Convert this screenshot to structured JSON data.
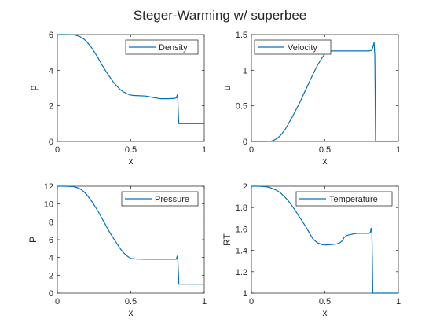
{
  "figure": {
    "title": "Steger-Warming w/ superbee"
  },
  "chart_data": [
    {
      "type": "line",
      "xlabel": "x",
      "ylabel": "ρ",
      "xlim": [
        0,
        1
      ],
      "ylim": [
        0,
        6
      ],
      "xticks": [
        "0",
        "0.5",
        "1"
      ],
      "yticks": [
        "0",
        "2",
        "4",
        "6"
      ],
      "legend": {
        "placement": "top-right",
        "entries": [
          "Density"
        ]
      },
      "color": "#0072bd",
      "series": [
        {
          "name": "Density",
          "x": [
            0,
            0.05,
            0.1,
            0.12,
            0.15,
            0.18,
            0.2,
            0.23,
            0.25,
            0.28,
            0.3,
            0.33,
            0.35,
            0.38,
            0.4,
            0.43,
            0.45,
            0.48,
            0.5,
            0.52,
            0.55,
            0.6,
            0.62,
            0.65,
            0.68,
            0.7,
            0.72,
            0.75,
            0.78,
            0.8,
            0.81,
            0.815,
            0.82,
            0.825,
            0.827,
            0.83,
            0.85,
            0.9,
            0.95,
            1
          ],
          "y": [
            6,
            6,
            5.99,
            5.97,
            5.9,
            5.75,
            5.6,
            5.3,
            5.05,
            4.65,
            4.35,
            3.95,
            3.7,
            3.35,
            3.15,
            2.9,
            2.78,
            2.66,
            2.6,
            2.58,
            2.57,
            2.55,
            2.52,
            2.47,
            2.43,
            2.4,
            2.4,
            2.4,
            2.41,
            2.42,
            2.45,
            2.58,
            2.4,
            1.3,
            1.0,
            1.0,
            1.0,
            1.0,
            1.0,
            1.0
          ]
        }
      ]
    },
    {
      "type": "line",
      "xlabel": "x",
      "ylabel": "u",
      "xlim": [
        0,
        1
      ],
      "ylim": [
        0,
        1.5
      ],
      "xticks": [
        "0",
        "0.5",
        "1"
      ],
      "yticks": [
        "0",
        "0.5",
        "1",
        "1.5"
      ],
      "legend": {
        "placement": "top-left",
        "entries": [
          "Velocity"
        ]
      },
      "color": "#0072bd",
      "series": [
        {
          "name": "Velocity",
          "x": [
            0,
            0.1,
            0.13,
            0.15,
            0.18,
            0.2,
            0.23,
            0.25,
            0.28,
            0.3,
            0.33,
            0.35,
            0.38,
            0.4,
            0.43,
            0.45,
            0.48,
            0.5,
            0.52,
            0.55,
            0.6,
            0.7,
            0.8,
            0.82,
            0.83,
            0.835,
            0.84,
            0.845,
            0.85,
            0.9,
            1
          ],
          "y": [
            0,
            0,
            0.003,
            0.015,
            0.05,
            0.09,
            0.17,
            0.24,
            0.35,
            0.43,
            0.55,
            0.64,
            0.77,
            0.86,
            0.99,
            1.07,
            1.17,
            1.23,
            1.26,
            1.27,
            1.27,
            1.27,
            1.27,
            1.28,
            1.35,
            1.39,
            1.2,
            0.0,
            0,
            0,
            0
          ]
        }
      ]
    },
    {
      "type": "line",
      "xlabel": "x",
      "ylabel": "P",
      "xlim": [
        0,
        1
      ],
      "ylim": [
        0,
        12
      ],
      "xticks": [
        "0",
        "0.5",
        "1"
      ],
      "yticks": [
        "0",
        "2",
        "4",
        "6",
        "8",
        "10",
        "12"
      ],
      "legend": {
        "placement": "top-right",
        "entries": [
          "Pressure"
        ]
      },
      "color": "#0072bd",
      "series": [
        {
          "name": "Pressure",
          "x": [
            0,
            0.05,
            0.1,
            0.12,
            0.15,
            0.18,
            0.2,
            0.23,
            0.25,
            0.28,
            0.3,
            0.33,
            0.35,
            0.38,
            0.4,
            0.43,
            0.45,
            0.48,
            0.5,
            0.52,
            0.55,
            0.6,
            0.7,
            0.8,
            0.81,
            0.815,
            0.82,
            0.825,
            0.827,
            0.83,
            0.85,
            0.9,
            0.95,
            1
          ],
          "y": [
            12,
            12,
            11.97,
            11.92,
            11.75,
            11.4,
            11.05,
            10.4,
            9.9,
            9.1,
            8.5,
            7.6,
            7.0,
            6.2,
            5.7,
            4.95,
            4.55,
            4.1,
            3.9,
            3.85,
            3.82,
            3.8,
            3.8,
            3.8,
            3.82,
            4.1,
            3.8,
            2.0,
            1.0,
            1.0,
            1.0,
            1.0,
            1.0,
            1.0
          ]
        }
      ]
    },
    {
      "type": "line",
      "xlabel": "x",
      "ylabel": "RT",
      "xlim": [
        0,
        1
      ],
      "ylim": [
        1,
        2
      ],
      "xticks": [
        "0",
        "0.5",
        "1"
      ],
      "yticks": [
        "1",
        "1.2",
        "1.4",
        "1.6",
        "1.8",
        "2"
      ],
      "legend": {
        "placement": "top-right",
        "entries": [
          "Temperature"
        ]
      },
      "color": "#0072bd",
      "series": [
        {
          "name": "Temperature",
          "x": [
            0,
            0.05,
            0.1,
            0.12,
            0.15,
            0.18,
            0.2,
            0.23,
            0.25,
            0.28,
            0.3,
            0.33,
            0.35,
            0.38,
            0.4,
            0.42,
            0.45,
            0.48,
            0.5,
            0.52,
            0.55,
            0.58,
            0.6,
            0.62,
            0.63,
            0.65,
            0.68,
            0.7,
            0.72,
            0.75,
            0.78,
            0.8,
            0.81,
            0.815,
            0.82,
            0.823,
            0.826,
            0.83,
            0.85,
            0.9,
            0.95,
            1
          ],
          "y": [
            2,
            2,
            1.995,
            1.99,
            1.975,
            1.955,
            1.935,
            1.895,
            1.865,
            1.81,
            1.77,
            1.705,
            1.665,
            1.6,
            1.55,
            1.505,
            1.47,
            1.455,
            1.45,
            1.452,
            1.455,
            1.46,
            1.47,
            1.49,
            1.52,
            1.54,
            1.55,
            1.555,
            1.56,
            1.56,
            1.56,
            1.56,
            1.57,
            1.61,
            1.56,
            1.3,
            1.0,
            1.0,
            1.0,
            1.0,
            1.0,
            1.0
          ]
        }
      ]
    }
  ]
}
